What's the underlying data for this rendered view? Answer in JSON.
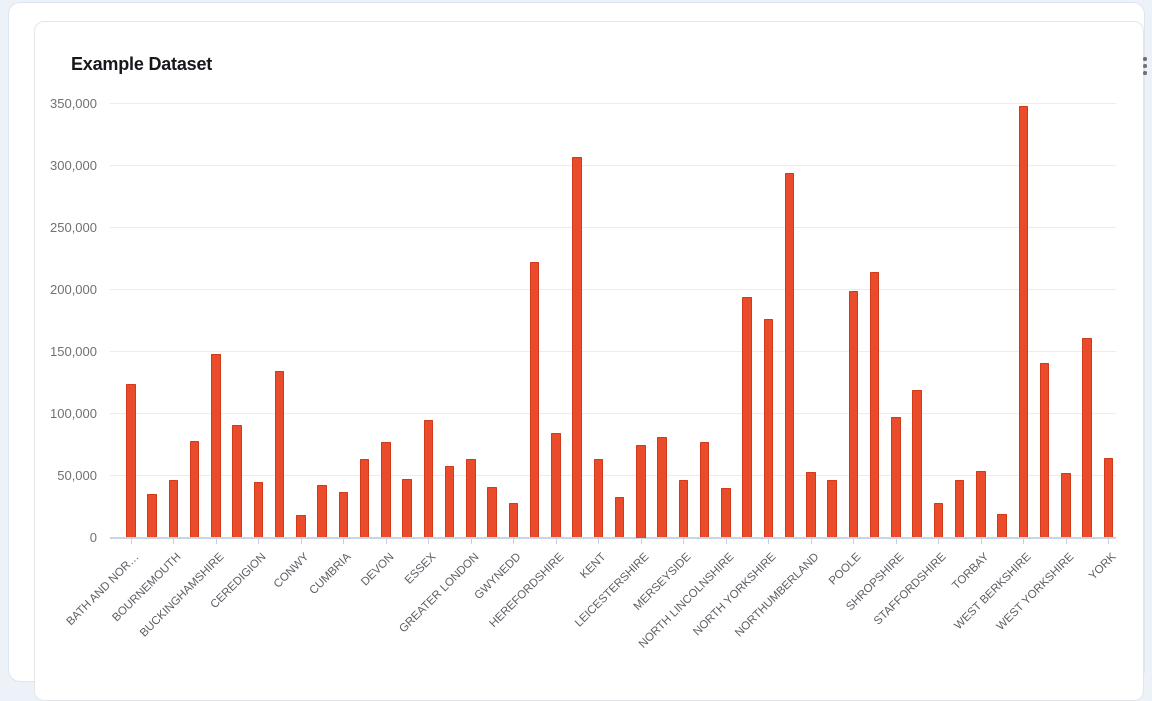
{
  "card": {
    "title": "Example Dataset",
    "menu_icon": "kebab-vertical-icon"
  },
  "chart_data": {
    "type": "bar",
    "title": "Example Dataset",
    "xlabel": "",
    "ylabel": "",
    "ylim": [
      0,
      350000
    ],
    "grid": true,
    "legend": "none",
    "bar_color": "#ea4b2b",
    "bar_border_color": "#d23a1c",
    "y_tick_values": [
      0,
      50000,
      100000,
      150000,
      200000,
      250000,
      300000,
      350000
    ],
    "y_tick_labels": [
      "0",
      "50,000",
      "100,000",
      "150,000",
      "200,000",
      "250,000",
      "300,000",
      "350,000"
    ],
    "x_tick_every": 2,
    "x_tick_labels": [
      "BATH AND NOR…",
      "BOURNEMOUTH",
      "BUCKINGHAMSHIRE",
      "CEREDIGION",
      "CONWY",
      "CUMBRIA",
      "DEVON",
      "ESSEX",
      "GREATER LONDON",
      "GWYNEDD",
      "HEREFORDSHIRE",
      "KENT",
      "LEICESTERSHIRE",
      "MERSEYSIDE",
      "NORTH LINCOLNSHIRE",
      "NORTH YORKSHIRE",
      "NORTHUMBERLAND",
      "POOLE",
      "SHROPSHIRE",
      "STAFFORDSHIRE",
      "TORBAY",
      "WEST BERKSHIRE",
      "WEST YORKSHIRE",
      "YORK"
    ],
    "values": [
      124000,
      35000,
      46000,
      78000,
      148000,
      91000,
      45000,
      134000,
      18000,
      42000,
      37000,
      63000,
      77000,
      47000,
      95000,
      58000,
      63000,
      41000,
      28000,
      222000,
      84000,
      307000,
      63000,
      33000,
      75000,
      81000,
      46000,
      77000,
      40000,
      194000,
      176000,
      294000,
      53000,
      46000,
      199000,
      214000,
      97000,
      119000,
      28000,
      46000,
      54000,
      19000,
      348000,
      141000,
      52000,
      161000,
      64000
    ]
  }
}
